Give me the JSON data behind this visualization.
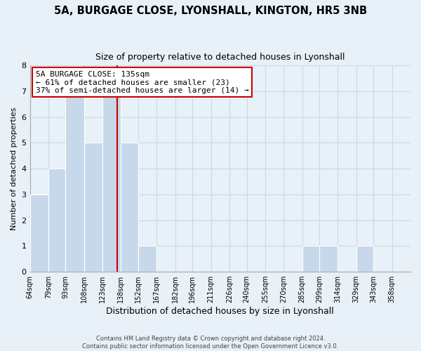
{
  "title": "5A, BURGAGE CLOSE, LYONSHALL, KINGTON, HR5 3NB",
  "subtitle": "Size of property relative to detached houses in Lyonshall",
  "xlabel": "Distribution of detached houses by size in Lyonshall",
  "ylabel": "Number of detached properties",
  "bar_edges": [
    64,
    79,
    93,
    108,
    123,
    138,
    152,
    167,
    182,
    196,
    211,
    226,
    240,
    255,
    270,
    285,
    299,
    314,
    329,
    343,
    358
  ],
  "bar_heights": [
    3,
    4,
    7,
    5,
    7,
    5,
    1,
    0,
    0,
    0,
    0,
    0,
    0,
    0,
    0,
    1,
    1,
    0,
    1,
    0
  ],
  "bar_color": "#c8d8eb",
  "bar_edgecolor": "#ffffff",
  "marker_x": 135,
  "marker_color": "#cc0000",
  "annotation_lines": [
    "5A BURGAGE CLOSE: 135sqm",
    "← 61% of detached houses are smaller (23)",
    "37% of semi-detached houses are larger (14) →"
  ],
  "annotation_box_edgecolor": "#cc0000",
  "annotation_box_facecolor": "white",
  "ylim": [
    0,
    8
  ],
  "xlim_min": 64,
  "xlim_max": 373,
  "tick_labels": [
    "64sqm",
    "79sqm",
    "93sqm",
    "108sqm",
    "123sqm",
    "138sqm",
    "152sqm",
    "167sqm",
    "182sqm",
    "196sqm",
    "211sqm",
    "226sqm",
    "240sqm",
    "255sqm",
    "270sqm",
    "285sqm",
    "299sqm",
    "314sqm",
    "329sqm",
    "343sqm",
    "358sqm"
  ],
  "tick_positions": [
    64,
    79,
    93,
    108,
    123,
    138,
    152,
    167,
    182,
    196,
    211,
    226,
    240,
    255,
    270,
    285,
    299,
    314,
    329,
    343,
    358
  ],
  "grid_color": "#c8d8eb",
  "background_color": "#e8f0f8",
  "footer_lines": [
    "Contains HM Land Registry data © Crown copyright and database right 2024.",
    "Contains public sector information licensed under the Open Government Licence v3.0."
  ]
}
